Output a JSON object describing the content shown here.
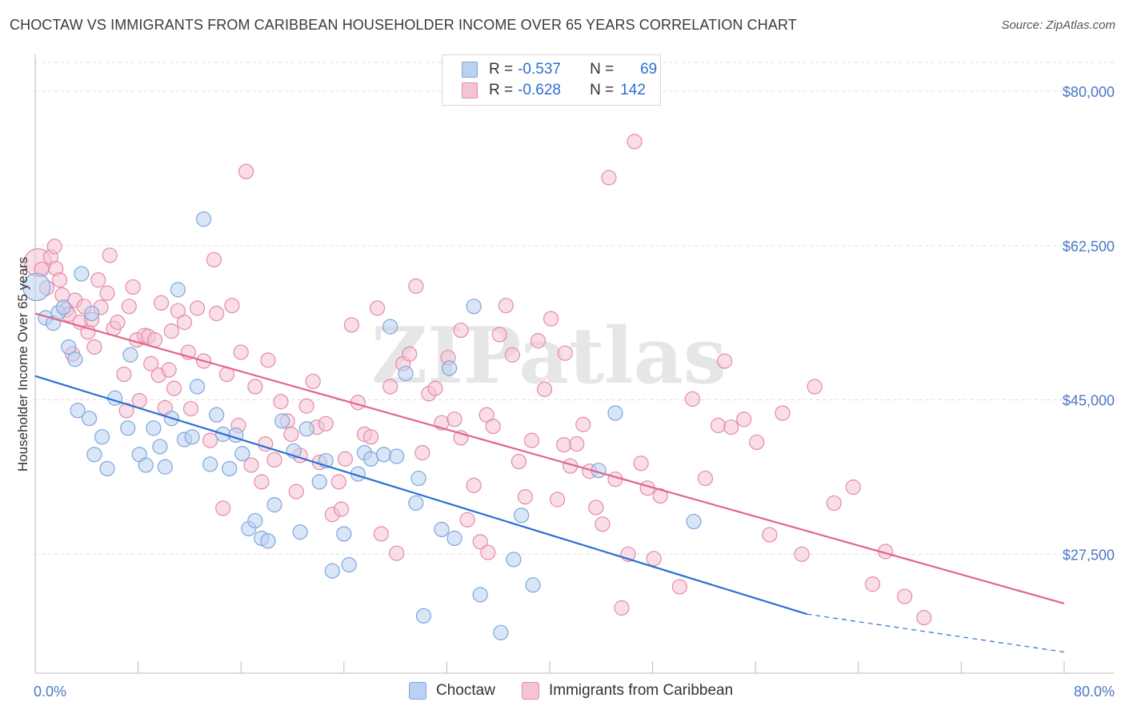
{
  "header": {
    "title": "CHOCTAW VS IMMIGRANTS FROM CARIBBEAN HOUSEHOLDER INCOME OVER 65 YEARS CORRELATION CHART",
    "source": "Source: ZipAtlas.com"
  },
  "legend": {
    "rows": [
      {
        "r_label": "R =",
        "r_value": "-0.537",
        "n_label": "N =",
        "n_value": "69"
      },
      {
        "r_label": "R =",
        "r_value": "-0.628",
        "n_label": "N =",
        "n_value": "142"
      }
    ]
  },
  "bottom_legend": {
    "series_a": "Choctaw",
    "series_b": "Immigrants from Caribbean"
  },
  "watermark": "ZIPatlas",
  "colors": {
    "blue_fill": "#b9d1f2",
    "blue_stroke": "#7ea6dc",
    "blue_line": "#2e6fd3",
    "pink_fill": "#f6c3d3",
    "pink_stroke": "#e48aa8",
    "pink_line": "#e0668e",
    "tick_text": "#4a78c8",
    "grid": "#dddddd"
  },
  "chart_data": {
    "type": "scatter",
    "title": "CHOCTAW VS IMMIGRANTS FROM CARIBBEAN HOUSEHOLDER INCOME OVER 65 YEARS CORRELATION CHART",
    "xlabel": "",
    "ylabel": "Householder Income Over 65 years",
    "xlim": [
      0,
      80
    ],
    "ylim": [
      14000,
      84000
    ],
    "x_tick_labels": [
      "0.0%",
      "80.0%"
    ],
    "y_ticks": [
      27500,
      45000,
      62500,
      80000
    ],
    "y_tick_labels": [
      "$27,500",
      "$45,000",
      "$62,500",
      "$80,000"
    ],
    "grid": true,
    "series": [
      {
        "name": "Choctaw",
        "color": "#b9d1f2",
        "trend": {
          "x0": 0,
          "y0": 47700,
          "x1": 60,
          "y1": 20700,
          "dashed_to_x": 80,
          "dashed_to_y": 16400
        },
        "points": [
          [
            0.1,
            57800
          ],
          [
            0.8,
            54300
          ],
          [
            1.4,
            53700
          ],
          [
            1.8,
            54900
          ],
          [
            2.2,
            55500
          ],
          [
            2.6,
            51000
          ],
          [
            3.1,
            49600
          ],
          [
            3.3,
            43800
          ],
          [
            3.6,
            59300
          ],
          [
            4.2,
            42900
          ],
          [
            4.4,
            54800
          ],
          [
            4.6,
            38800
          ],
          [
            5.2,
            40800
          ],
          [
            5.6,
            37200
          ],
          [
            6.2,
            45200
          ],
          [
            7.2,
            41800
          ],
          [
            7.4,
            50100
          ],
          [
            8.1,
            38800
          ],
          [
            8.6,
            37600
          ],
          [
            9.2,
            41800
          ],
          [
            9.7,
            39700
          ],
          [
            10.1,
            37400
          ],
          [
            10.6,
            42900
          ],
          [
            11.1,
            57500
          ],
          [
            11.6,
            40500
          ],
          [
            12.2,
            40800
          ],
          [
            12.6,
            46500
          ],
          [
            13.1,
            65500
          ],
          [
            13.6,
            37700
          ],
          [
            14.1,
            43300
          ],
          [
            14.6,
            41100
          ],
          [
            15.1,
            37200
          ],
          [
            15.6,
            41000
          ],
          [
            16.1,
            38900
          ],
          [
            16.6,
            30400
          ],
          [
            17.1,
            31300
          ],
          [
            17.6,
            29300
          ],
          [
            18.1,
            29000
          ],
          [
            18.6,
            33100
          ],
          [
            19.2,
            42600
          ],
          [
            20.1,
            39200
          ],
          [
            20.6,
            30000
          ],
          [
            21.1,
            41700
          ],
          [
            22.1,
            35700
          ],
          [
            22.6,
            38100
          ],
          [
            23.1,
            25600
          ],
          [
            24.0,
            29800
          ],
          [
            24.4,
            26300
          ],
          [
            25.1,
            36600
          ],
          [
            25.6,
            39000
          ],
          [
            26.1,
            38300
          ],
          [
            27.1,
            38800
          ],
          [
            27.6,
            53300
          ],
          [
            28.1,
            38600
          ],
          [
            28.8,
            48000
          ],
          [
            29.6,
            33300
          ],
          [
            29.8,
            36100
          ],
          [
            30.2,
            20500
          ],
          [
            31.6,
            30300
          ],
          [
            32.2,
            48600
          ],
          [
            32.6,
            29300
          ],
          [
            34.1,
            55600
          ],
          [
            34.6,
            22900
          ],
          [
            36.2,
            18600
          ],
          [
            37.2,
            26900
          ],
          [
            37.8,
            31900
          ],
          [
            38.7,
            24000
          ],
          [
            43.8,
            37000
          ],
          [
            45.1,
            43500
          ],
          [
            51.2,
            31200
          ]
        ]
      },
      {
        "name": "Immigrants from Caribbean",
        "color": "#f6c3d3",
        "trend": {
          "x0": 0,
          "y0": 54800,
          "x1": 80,
          "y1": 21900
        },
        "points": [
          [
            0.2,
            60600
          ],
          [
            0.5,
            59800
          ],
          [
            0.9,
            57700
          ],
          [
            1.2,
            61200
          ],
          [
            1.5,
            62400
          ],
          [
            1.6,
            59900
          ],
          [
            1.9,
            58600
          ],
          [
            2.1,
            56900
          ],
          [
            2.4,
            55200
          ],
          [
            2.6,
            54700
          ],
          [
            2.9,
            50200
          ],
          [
            3.1,
            56300
          ],
          [
            3.5,
            53800
          ],
          [
            3.8,
            55600
          ],
          [
            4.1,
            52700
          ],
          [
            4.4,
            54100
          ],
          [
            4.6,
            51000
          ],
          [
            4.9,
            58600
          ],
          [
            5.1,
            55500
          ],
          [
            5.6,
            57100
          ],
          [
            5.8,
            61400
          ],
          [
            6.1,
            53100
          ],
          [
            6.4,
            53800
          ],
          [
            6.9,
            47900
          ],
          [
            7.1,
            43800
          ],
          [
            7.3,
            55600
          ],
          [
            7.6,
            57800
          ],
          [
            7.9,
            51800
          ],
          [
            8.1,
            44900
          ],
          [
            8.5,
            52300
          ],
          [
            8.8,
            52200
          ],
          [
            9.0,
            49100
          ],
          [
            9.3,
            51800
          ],
          [
            9.6,
            47800
          ],
          [
            9.8,
            56000
          ],
          [
            10.1,
            44100
          ],
          [
            10.4,
            48400
          ],
          [
            10.6,
            52800
          ],
          [
            10.8,
            46300
          ],
          [
            11.1,
            55100
          ],
          [
            11.6,
            53800
          ],
          [
            11.9,
            50400
          ],
          [
            12.1,
            44000
          ],
          [
            12.6,
            55400
          ],
          [
            13.1,
            49400
          ],
          [
            13.6,
            40400
          ],
          [
            13.9,
            60900
          ],
          [
            14.1,
            54800
          ],
          [
            14.6,
            32700
          ],
          [
            14.9,
            47900
          ],
          [
            15.3,
            55700
          ],
          [
            15.8,
            42100
          ],
          [
            16.0,
            50400
          ],
          [
            16.4,
            70900
          ],
          [
            16.8,
            37600
          ],
          [
            17.1,
            46500
          ],
          [
            17.6,
            35700
          ],
          [
            17.9,
            40000
          ],
          [
            18.1,
            49500
          ],
          [
            18.6,
            38200
          ],
          [
            19.1,
            44800
          ],
          [
            19.6,
            42600
          ],
          [
            19.9,
            41100
          ],
          [
            20.3,
            34600
          ],
          [
            20.6,
            38700
          ],
          [
            21.1,
            44300
          ],
          [
            21.6,
            47100
          ],
          [
            21.9,
            41900
          ],
          [
            22.1,
            37900
          ],
          [
            22.6,
            42300
          ],
          [
            23.1,
            32000
          ],
          [
            23.6,
            35700
          ],
          [
            24.1,
            38300
          ],
          [
            24.6,
            53500
          ],
          [
            25.1,
            44700
          ],
          [
            25.6,
            41100
          ],
          [
            26.1,
            40800
          ],
          [
            26.6,
            55400
          ],
          [
            26.9,
            29800
          ],
          [
            27.6,
            46500
          ],
          [
            28.1,
            27600
          ],
          [
            28.6,
            49100
          ],
          [
            29.1,
            50200
          ],
          [
            29.6,
            57900
          ],
          [
            30.1,
            39000
          ],
          [
            30.6,
            45700
          ],
          [
            31.1,
            46300
          ],
          [
            31.6,
            42400
          ],
          [
            32.1,
            49800
          ],
          [
            32.6,
            42800
          ],
          [
            33.1,
            40700
          ],
          [
            33.6,
            31400
          ],
          [
            34.1,
            35300
          ],
          [
            34.6,
            28900
          ],
          [
            35.1,
            43300
          ],
          [
            35.6,
            42000
          ],
          [
            36.1,
            52400
          ],
          [
            36.6,
            55700
          ],
          [
            37.1,
            50100
          ],
          [
            37.6,
            38000
          ],
          [
            38.1,
            34000
          ],
          [
            38.6,
            40400
          ],
          [
            39.1,
            51700
          ],
          [
            39.6,
            46200
          ],
          [
            40.1,
            54200
          ],
          [
            40.6,
            33700
          ],
          [
            41.1,
            39900
          ],
          [
            41.6,
            37500
          ],
          [
            42.1,
            40000
          ],
          [
            42.6,
            42200
          ],
          [
            43.1,
            36900
          ],
          [
            43.6,
            32800
          ],
          [
            44.1,
            30900
          ],
          [
            44.6,
            70200
          ],
          [
            45.1,
            36000
          ],
          [
            45.6,
            21400
          ],
          [
            46.1,
            27500
          ],
          [
            46.6,
            74300
          ],
          [
            47.1,
            37800
          ],
          [
            47.6,
            35000
          ],
          [
            48.1,
            27000
          ],
          [
            48.6,
            34100
          ],
          [
            50.1,
            23800
          ],
          [
            51.1,
            45100
          ],
          [
            52.1,
            36100
          ],
          [
            53.1,
            42100
          ],
          [
            53.6,
            49400
          ],
          [
            54.1,
            41900
          ],
          [
            55.1,
            42800
          ],
          [
            56.1,
            40200
          ],
          [
            57.1,
            29700
          ],
          [
            58.1,
            43500
          ],
          [
            59.6,
            27500
          ],
          [
            60.6,
            46500
          ],
          [
            62.1,
            33300
          ],
          [
            63.6,
            35100
          ],
          [
            65.1,
            24100
          ],
          [
            66.1,
            27800
          ],
          [
            67.6,
            22700
          ],
          [
            69.1,
            20300
          ],
          [
            33.1,
            52900
          ],
          [
            35.2,
            27700
          ],
          [
            41.2,
            50300
          ],
          [
            23.8,
            32600
          ]
        ]
      }
    ]
  }
}
